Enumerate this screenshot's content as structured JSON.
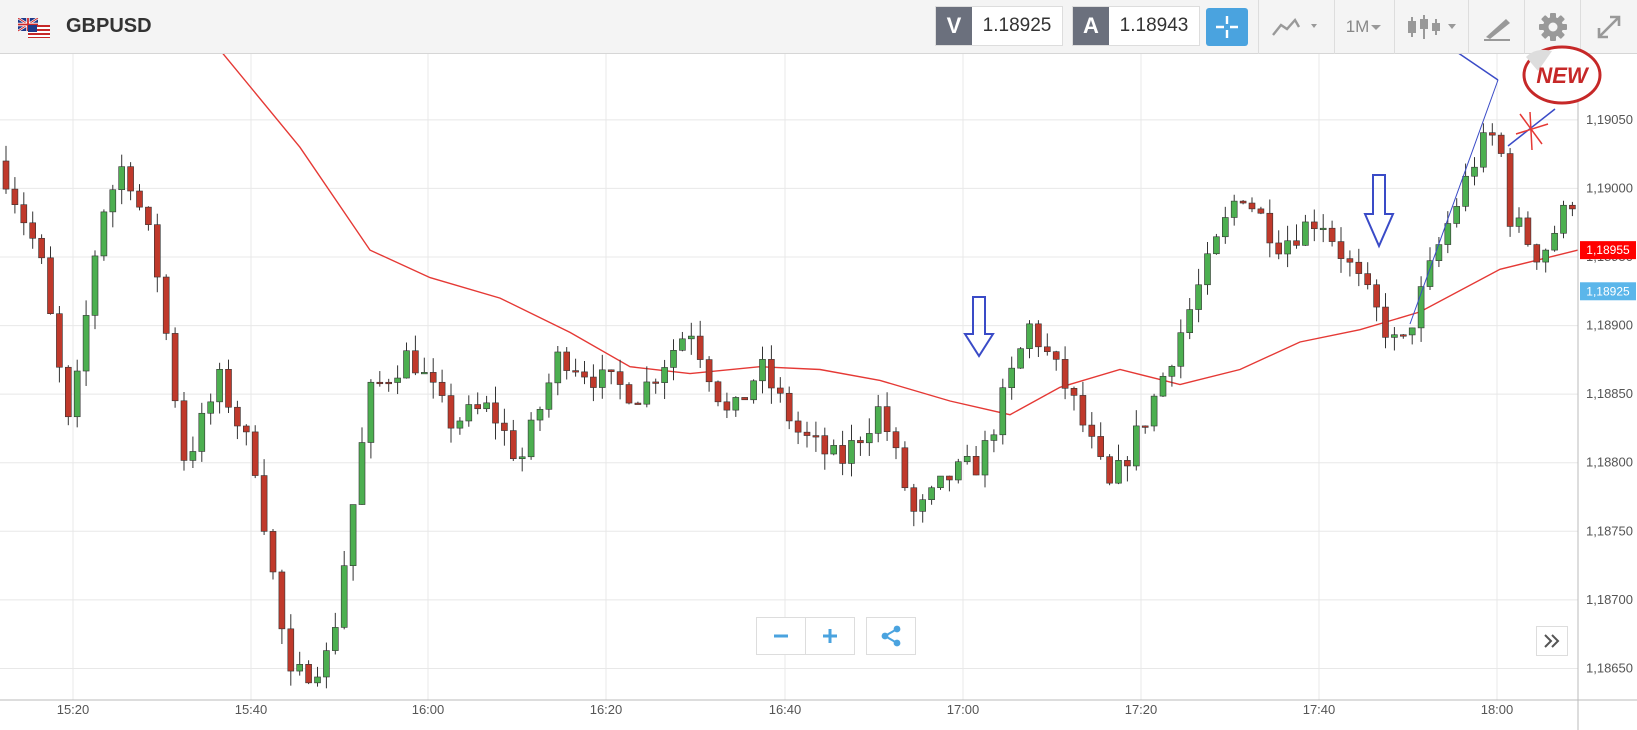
{
  "header": {
    "symbol": "GBPUSD",
    "bid_label": "V",
    "bid_value": "1.18925",
    "ask_label": "A",
    "ask_value": "1.18943",
    "timeframe": "1M"
  },
  "badge_text": "NEW",
  "colors": {
    "up": "#4caf50",
    "down": "#c0392b",
    "ma": "#e53935",
    "accent": "#4aa3df",
    "annotation": "#3a4bc7"
  },
  "chart_data": {
    "type": "candlestick",
    "y_ticks": [
      "1,19050",
      "1,19000",
      "1,18950",
      "1,18900",
      "1,18850",
      "1,18800",
      "1,18750",
      "1,18700",
      "1,18650"
    ],
    "y_tick_values": [
      1.1905,
      1.19,
      1.1895,
      1.189,
      1.1885,
      1.188,
      1.1875,
      1.187,
      1.1865
    ],
    "ylim": [
      1.18627,
      1.19098
    ],
    "x_ticks": [
      "15:20",
      "15:40",
      "16:00",
      "16:20",
      "16:40",
      "17:00",
      "17:20",
      "17:40",
      "18:00"
    ],
    "price_markers": [
      {
        "label": "1,18955",
        "value": 1.18955,
        "color": "#ff0000"
      },
      {
        "label": "1,18925",
        "value": 1.18925,
        "color": "#5bb6ea"
      }
    ],
    "grid": true
  }
}
